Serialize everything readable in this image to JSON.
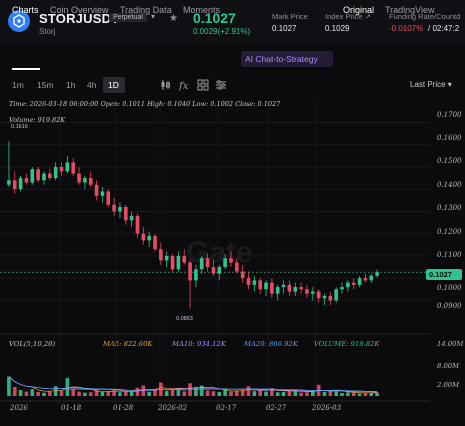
{
  "header": {
    "symbol": "STORJUSDT",
    "contract_type": "Perpetual",
    "coin_name": "Storj",
    "last_price": "0.1027",
    "change": "0.0029(+2.91%)",
    "mark_price_label": "Mark Price",
    "mark_price": "0.1027",
    "index_price_label": "Index Price ↗",
    "index_price": "0.1029",
    "funding_label": "Funding Rate/Countd",
    "funding_rate": "-0.0107%",
    "funding_countdown": "/ 02:47:2",
    "colors": {
      "up": "#2fc48d",
      "down": "#e84a5f",
      "brand": "#2f7df6"
    }
  },
  "tabs": {
    "items": [
      "Charts",
      "Coin Overview",
      "Trading Data",
      "Moments"
    ],
    "ai_label": "AI Chat-to-Strategy",
    "view_original": "Original",
    "view_tradingview": "TradingView"
  },
  "toolbar": {
    "timeframes": [
      "1m",
      "15m",
      "1h",
      "4h",
      "1D"
    ],
    "active_timeframe": "1D",
    "icons": [
      "candle-type-icon",
      "indicators-icon",
      "grid-layout-icon",
      "settings-icon"
    ],
    "price_type": "Last Price ▾"
  },
  "chart": {
    "info_line": "Time: 2026-03-18 06:00:00    Open: 0.1011    High: 0.1040    Low: 0.1002    Close: 0.1027",
    "volume_line": "Volume: 919.82K",
    "high_marker": "0.1616",
    "low_marker": "0.0863",
    "watermark": "Gate",
    "y_ticks": [
      "0.1700",
      "0.1600",
      "0.1500",
      "0.1400",
      "0.1300",
      "0.1200",
      "0.1100",
      "0.1000",
      "0.0900"
    ],
    "last_price_tag": "0.1027",
    "indicators": {
      "vol": "VOL(5,10,20)",
      "ma5": "MA5: 822.60K",
      "ma10": "MA10: 934.12K",
      "ma20": "MA20: 866.92K",
      "volume": "VOLUME: 919.82K"
    },
    "volume_ticks": [
      "14.00M",
      "8.00M",
      "2.00M"
    ],
    "x_ticks": [
      "2026",
      "01-18",
      "01-28",
      "2026-02",
      "02-17",
      "02-27",
      "2026-03"
    ]
  },
  "chart_data": {
    "type": "candlestick",
    "title": "",
    "interval": "1D",
    "ylim": [
      0.083,
      0.172
    ],
    "price_axis_ticks": [
      0.17,
      0.16,
      0.15,
      0.14,
      0.13,
      0.12,
      0.11,
      0.1,
      0.09
    ],
    "volume_axis_ticks_M": [
      14,
      8,
      2
    ],
    "x_labels": [
      "2026",
      "01-18",
      "01-28",
      "2026-02",
      "02-17",
      "02-27",
      "2026-03"
    ],
    "last_candle": {
      "time": "2026-03-18 06:00:00",
      "open": 0.1011,
      "high": 0.104,
      "low": 0.1002,
      "close": 0.1027,
      "volume": "919.82K"
    },
    "period_high": 0.1616,
    "period_low": 0.0863,
    "ohlc": [
      [
        0.142,
        0.1616,
        0.141,
        0.144
      ],
      [
        0.144,
        0.148,
        0.138,
        0.14
      ],
      [
        0.14,
        0.146,
        0.139,
        0.145
      ],
      [
        0.145,
        0.147,
        0.142,
        0.143
      ],
      [
        0.143,
        0.15,
        0.142,
        0.149
      ],
      [
        0.149,
        0.15,
        0.143,
        0.144
      ],
      [
        0.144,
        0.148,
        0.142,
        0.147
      ],
      [
        0.147,
        0.149,
        0.144,
        0.145
      ],
      [
        0.145,
        0.152,
        0.144,
        0.15
      ],
      [
        0.15,
        0.152,
        0.146,
        0.148
      ],
      [
        0.148,
        0.155,
        0.147,
        0.152
      ],
      [
        0.152,
        0.154,
        0.146,
        0.147
      ],
      [
        0.147,
        0.15,
        0.142,
        0.143
      ],
      [
        0.143,
        0.146,
        0.14,
        0.145
      ],
      [
        0.145,
        0.148,
        0.141,
        0.142
      ],
      [
        0.142,
        0.144,
        0.135,
        0.137
      ],
      [
        0.137,
        0.141,
        0.134,
        0.139
      ],
      [
        0.139,
        0.14,
        0.132,
        0.133
      ],
      [
        0.133,
        0.136,
        0.128,
        0.13
      ],
      [
        0.13,
        0.134,
        0.127,
        0.132
      ],
      [
        0.132,
        0.133,
        0.124,
        0.126
      ],
      [
        0.126,
        0.13,
        0.123,
        0.128
      ],
      [
        0.128,
        0.129,
        0.118,
        0.12
      ],
      [
        0.12,
        0.123,
        0.115,
        0.117
      ],
      [
        0.117,
        0.121,
        0.114,
        0.119
      ],
      [
        0.119,
        0.12,
        0.112,
        0.113
      ],
      [
        0.113,
        0.116,
        0.106,
        0.108
      ],
      [
        0.108,
        0.112,
        0.105,
        0.11
      ],
      [
        0.11,
        0.111,
        0.103,
        0.104
      ],
      [
        0.104,
        0.112,
        0.103,
        0.11
      ],
      [
        0.11,
        0.113,
        0.106,
        0.107
      ],
      [
        0.107,
        0.108,
        0.0863,
        0.099
      ],
      [
        0.099,
        0.106,
        0.096,
        0.104
      ],
      [
        0.104,
        0.11,
        0.102,
        0.109
      ],
      [
        0.109,
        0.111,
        0.103,
        0.105
      ],
      [
        0.105,
        0.108,
        0.101,
        0.102
      ],
      [
        0.102,
        0.106,
        0.099,
        0.105
      ],
      [
        0.105,
        0.111,
        0.104,
        0.109
      ],
      [
        0.109,
        0.112,
        0.105,
        0.107
      ],
      [
        0.107,
        0.109,
        0.102,
        0.103
      ],
      [
        0.103,
        0.106,
        0.098,
        0.1
      ],
      [
        0.1,
        0.103,
        0.095,
        0.097
      ],
      [
        0.097,
        0.101,
        0.094,
        0.099
      ],
      [
        0.099,
        0.1,
        0.093,
        0.095
      ],
      [
        0.095,
        0.099,
        0.092,
        0.098
      ],
      [
        0.098,
        0.1,
        0.091,
        0.093
      ],
      [
        0.093,
        0.097,
        0.09,
        0.096
      ],
      [
        0.096,
        0.099,
        0.093,
        0.097
      ],
      [
        0.097,
        0.099,
        0.092,
        0.094
      ],
      [
        0.094,
        0.098,
        0.092,
        0.096
      ],
      [
        0.096,
        0.098,
        0.093,
        0.095
      ],
      [
        0.095,
        0.097,
        0.091,
        0.093
      ],
      [
        0.093,
        0.096,
        0.09,
        0.094
      ],
      [
        0.094,
        0.095,
        0.089,
        0.091
      ],
      [
        0.091,
        0.093,
        0.088,
        0.092
      ],
      [
        0.092,
        0.094,
        0.088,
        0.09
      ],
      [
        0.09,
        0.096,
        0.089,
        0.095
      ],
      [
        0.095,
        0.098,
        0.093,
        0.096
      ],
      [
        0.096,
        0.099,
        0.094,
        0.098
      ],
      [
        0.098,
        0.1,
        0.095,
        0.097
      ],
      [
        0.097,
        0.101,
        0.096,
        0.1
      ],
      [
        0.1,
        0.102,
        0.098,
        0.099
      ],
      [
        0.099,
        0.102,
        0.098,
        0.1011
      ],
      [
        0.1011,
        0.104,
        0.1002,
        0.1027
      ]
    ],
    "volume_M": [
      5.2,
      2.4,
      1.6,
      1.2,
      1.8,
      1.1,
      0.9,
      1.3,
      2.6,
      1.4,
      4.8,
      1.9,
      1.2,
      0.9,
      1.0,
      1.6,
      1.1,
      1.3,
      1.5,
      1.0,
      1.4,
      1.2,
      2.2,
      2.8,
      1.1,
      1.6,
      3.6,
      1.4,
      1.8,
      2.0,
      1.2,
      3.4,
      2.4,
      2.8,
      1.5,
      1.3,
      1.1,
      1.7,
      1.2,
      1.4,
      1.6,
      2.6,
      1.3,
      1.8,
      1.2,
      2.1,
      1.0,
      1.1,
      1.3,
      1.5,
      0.9,
      1.0,
      1.2,
      3.0,
      1.1,
      1.4,
      1.2,
      0.8,
      0.9,
      1.0,
      0.7,
      0.8,
      0.9,
      0.92
    ]
  }
}
